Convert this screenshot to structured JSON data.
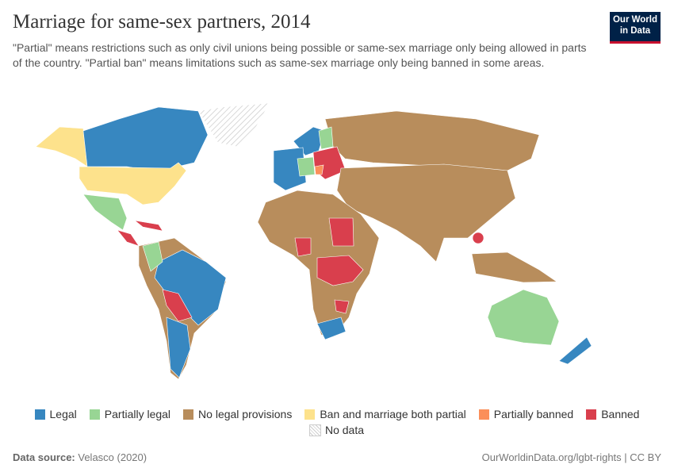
{
  "title": "Marriage for same-sex partners, 2014",
  "subtitle": "\"Partial\" means restrictions such as only civil unions being possible or same-sex marriage only being allowed in parts of the country. \"Partial ban\" means limitations such as same-sex marriage only being banned in some areas.",
  "logo": [
    "Our World",
    "in Data"
  ],
  "legend": [
    {
      "label": "Legal",
      "color": "#3787c0"
    },
    {
      "label": "Partially legal",
      "color": "#98d594"
    },
    {
      "label": "No legal provisions",
      "color": "#b88d5c"
    },
    {
      "label": "Ban and marriage both partial",
      "color": "#fde28c"
    },
    {
      "label": "Partially banned",
      "color": "#fb8f5a"
    },
    {
      "label": "Banned",
      "color": "#d93f4d"
    }
  ],
  "no_data": "No data",
  "source_label": "Data source:",
  "source": "Velasco (2020)",
  "footer_right": "OurWorldinData.org/lgbt-rights | CC BY"
}
